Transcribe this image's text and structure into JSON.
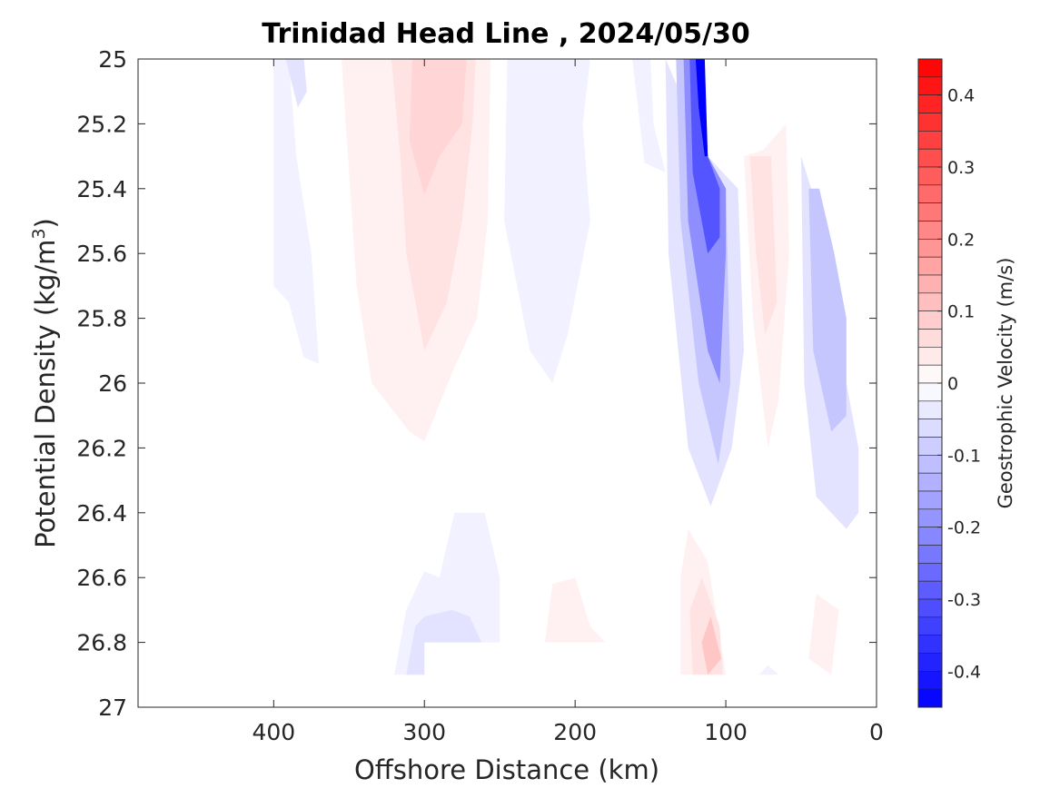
{
  "chart_data": {
    "type": "heatmap",
    "subtype": "filled-contour",
    "title": "Trinidad Head Line , 2024/05/30",
    "xlabel": "Offshore Distance (km)",
    "ylabel_main": "Potential Density (kg/m",
    "ylabel_sup": "3",
    "ylabel_end": ")",
    "x_reversed": true,
    "y_reversed": true,
    "xlim": [
      490,
      0
    ],
    "ylim": [
      25,
      27
    ],
    "xticks": [
      400,
      300,
      200,
      100,
      0
    ],
    "xtick_labels": [
      "400",
      "300",
      "200",
      "100",
      "0"
    ],
    "yticks": [
      25,
      25.2,
      25.4,
      25.6,
      25.8,
      26,
      26.2,
      26.4,
      26.6,
      26.8,
      27
    ],
    "ytick_labels": [
      "25",
      "25.2",
      "25.4",
      "25.6",
      "25.8",
      "26",
      "26.2",
      "26.4",
      "26.6",
      "26.8",
      "27"
    ],
    "colorbar": {
      "label": "Geostrophic Velocity (m/s)",
      "range": [
        -0.45,
        0.45
      ],
      "step": 0.025,
      "ticks": [
        0.4,
        0.3,
        0.2,
        0.1,
        0,
        -0.1,
        -0.2,
        -0.3,
        -0.4
      ],
      "tick_labels": [
        "0.4",
        "0.3",
        "0.2",
        "0.1",
        "0",
        "-0.1",
        "-0.2",
        "-0.3",
        "-0.4"
      ],
      "colormap": "blue-white-red",
      "color_min": "#0000ff",
      "color_max": "#ff0000"
    },
    "contour_regions": [
      {
        "v": -0.025,
        "pts": [
          [
            400,
            25
          ],
          [
            390,
            25
          ],
          [
            385,
            25.3
          ],
          [
            375,
            25.6
          ],
          [
            370,
            25.94
          ],
          [
            380,
            25.92
          ],
          [
            390,
            25.75
          ],
          [
            400,
            25.7
          ]
        ]
      },
      {
        "v": -0.05,
        "pts": [
          [
            392,
            25
          ],
          [
            380,
            25
          ],
          [
            378,
            25.1
          ],
          [
            384,
            25.15
          ]
        ]
      },
      {
        "v": 0.025,
        "pts": [
          [
            355,
            25
          ],
          [
            345,
            25.7
          ],
          [
            335,
            26
          ],
          [
            310,
            26.15
          ],
          [
            300,
            26.18
          ],
          [
            280,
            25.95
          ],
          [
            265,
            25.8
          ],
          [
            258,
            25.5
          ],
          [
            256,
            25
          ]
        ]
      },
      {
        "v": 0.05,
        "pts": [
          [
            322,
            25
          ],
          [
            316,
            25.3
          ],
          [
            312,
            25.6
          ],
          [
            300,
            25.9
          ],
          [
            285,
            25.75
          ],
          [
            275,
            25.5
          ],
          [
            268,
            25.2
          ],
          [
            266,
            25
          ]
        ]
      },
      {
        "v": 0.075,
        "pts": [
          [
            308,
            25
          ],
          [
            310,
            25.25
          ],
          [
            300,
            25.42
          ],
          [
            290,
            25.3
          ],
          [
            275,
            25.2
          ],
          [
            272,
            25
          ]
        ]
      },
      {
        "v": -0.025,
        "pts": [
          [
            245,
            25
          ],
          [
            247,
            25.5
          ],
          [
            230,
            25.9
          ],
          [
            215,
            26.0
          ],
          [
            205,
            25.85
          ],
          [
            190,
            25.5
          ],
          [
            195,
            25.2
          ],
          [
            190,
            25
          ]
        ]
      },
      {
        "v": -0.025,
        "pts": [
          [
            162,
            25
          ],
          [
            150,
            25
          ],
          [
            148,
            25.2
          ],
          [
            140,
            25.35
          ],
          [
            154,
            25.32
          ]
        ]
      },
      {
        "v": -0.05,
        "pts": [
          [
            140,
            25
          ],
          [
            138,
            25.6
          ],
          [
            125,
            26.2
          ],
          [
            110,
            26.38
          ],
          [
            96,
            26.2
          ],
          [
            88,
            25.9
          ],
          [
            92,
            25.4
          ],
          [
            112,
            25.3
          ]
        ]
      },
      {
        "v": -0.1,
        "pts": [
          [
            133,
            25
          ],
          [
            130,
            25.5
          ],
          [
            118,
            26
          ],
          [
            105,
            26.25
          ],
          [
            97,
            26.0
          ],
          [
            100,
            25.4
          ],
          [
            112,
            25.3
          ],
          [
            118,
            25
          ]
        ]
      },
      {
        "v": -0.2,
        "pts": [
          [
            128,
            25
          ],
          [
            125,
            25.5
          ],
          [
            112,
            25.9
          ],
          [
            104,
            26.0
          ],
          [
            100,
            25.6
          ],
          [
            100,
            25.4
          ],
          [
            112,
            25.3
          ],
          [
            116,
            25
          ]
        ]
      },
      {
        "v": -0.3,
        "pts": [
          [
            124,
            25
          ],
          [
            122,
            25.35
          ],
          [
            112,
            25.6
          ],
          [
            104,
            25.55
          ],
          [
            104,
            25.4
          ],
          [
            112,
            25.3
          ],
          [
            115,
            25
          ]
        ]
      },
      {
        "v": -0.45,
        "pts": [
          [
            120,
            25
          ],
          [
            118,
            25.15
          ],
          [
            114,
            25.3
          ],
          [
            112,
            25.3
          ],
          [
            114,
            25
          ]
        ]
      },
      {
        "v": 0.025,
        "pts": [
          [
            88,
            25.3
          ],
          [
            82,
            25.8
          ],
          [
            72,
            26.2
          ],
          [
            65,
            26.05
          ],
          [
            58,
            25.6
          ],
          [
            60,
            25.2
          ],
          [
            75,
            25.28
          ]
        ]
      },
      {
        "v": 0.05,
        "pts": [
          [
            84,
            25.3
          ],
          [
            80,
            25.6
          ],
          [
            74,
            25.85
          ],
          [
            66,
            25.75
          ],
          [
            70,
            25.3
          ]
        ]
      },
      {
        "v": -0.05,
        "pts": [
          [
            50,
            25.3
          ],
          [
            48,
            26.0
          ],
          [
            40,
            26.35
          ],
          [
            20,
            26.45
          ],
          [
            12,
            26.4
          ],
          [
            12,
            26.2
          ],
          [
            20,
            26.0
          ],
          [
            30,
            25.8
          ],
          [
            35,
            25.6
          ],
          [
            40,
            25.45
          ]
        ]
      },
      {
        "v": -0.1,
        "pts": [
          [
            45,
            25.4
          ],
          [
            42,
            25.9
          ],
          [
            30,
            26.15
          ],
          [
            20,
            26.1
          ],
          [
            20,
            25.8
          ],
          [
            28,
            25.6
          ],
          [
            38,
            25.4
          ]
        ]
      },
      {
        "v": -0.025,
        "pts": [
          [
            320,
            26.9
          ],
          [
            312,
            26.7
          ],
          [
            300,
            26.58
          ],
          [
            290,
            26.6
          ],
          [
            280,
            26.4
          ],
          [
            260,
            26.4
          ],
          [
            250,
            26.6
          ],
          [
            250,
            26.8
          ],
          [
            300,
            26.8
          ],
          [
            300,
            26.9
          ]
        ]
      },
      {
        "v": -0.05,
        "pts": [
          [
            312,
            26.9
          ],
          [
            306,
            26.75
          ],
          [
            300,
            26.72
          ],
          [
            282,
            26.7
          ],
          [
            270,
            26.72
          ],
          [
            262,
            26.8
          ],
          [
            300,
            26.8
          ],
          [
            300,
            26.9
          ]
        ]
      },
      {
        "v": 0.025,
        "pts": [
          [
            220,
            26.8
          ],
          [
            215,
            26.62
          ],
          [
            200,
            26.6
          ],
          [
            190,
            26.75
          ],
          [
            180,
            26.8
          ]
        ]
      },
      {
        "v": 0.025,
        "pts": [
          [
            130,
            26.9
          ],
          [
            130,
            26.6
          ],
          [
            125,
            26.45
          ],
          [
            112,
            26.55
          ],
          [
            100,
            26.9
          ]
        ]
      },
      {
        "v": 0.05,
        "pts": [
          [
            122,
            26.9
          ],
          [
            124,
            26.7
          ],
          [
            116,
            26.6
          ],
          [
            104,
            26.75
          ],
          [
            102,
            26.9
          ]
        ]
      },
      {
        "v": 0.1,
        "pts": [
          [
            112,
            26.9
          ],
          [
            116,
            26.8
          ],
          [
            110,
            26.72
          ],
          [
            103,
            26.85
          ]
        ]
      },
      {
        "v": 0.025,
        "pts": [
          [
            45,
            26.85
          ],
          [
            40,
            26.65
          ],
          [
            25,
            26.7
          ],
          [
            30,
            26.9
          ]
        ]
      },
      {
        "v": -0.025,
        "pts": [
          [
            78,
            26.9
          ],
          [
            72,
            26.87
          ],
          [
            65,
            26.9
          ]
        ]
      }
    ]
  }
}
